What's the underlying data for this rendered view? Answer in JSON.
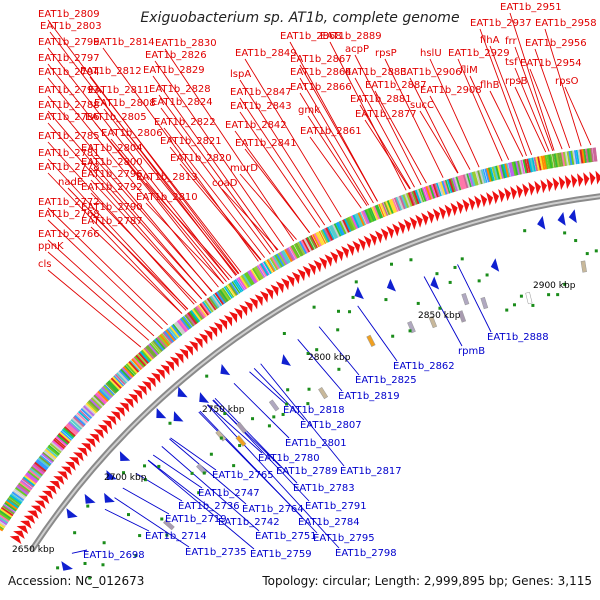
{
  "title": "Exiguobacterium sp. AT1b, complete genome",
  "footer": {
    "accession": "Accession: NC_012673",
    "summary": "Topology: circular; Length: 2,999,895 bp; Genes: 3,115"
  },
  "colors": {
    "forward_label": "#e00000",
    "reverse_label": "#0000cc",
    "forward_arrow": "#ee1111",
    "reverse_arrow": "#1020d0",
    "backbone": "#8a8a8a",
    "tick_marker": "#1a8c1a"
  },
  "bp_ticks": [
    {
      "label": "2650 kbp"
    },
    {
      "label": "2700 kbp"
    },
    {
      "label": "2750 kbp"
    },
    {
      "label": "2800 kbp"
    },
    {
      "label": "2850 kbp"
    },
    {
      "label": "2900 kbp"
    }
  ],
  "forward_labels": [
    "EAT1b_2809",
    "EAT1b_2803",
    "EAT1b_2799",
    "EAT1b_2814",
    "EAT1b_2830",
    "EAT1b_2797",
    "EAT1b_2826",
    "EAT1b_2794",
    "EAT1b_2812",
    "EAT1b_2829",
    "EAT1b_2793",
    "EAT1b_2811",
    "EAT1b_2828",
    "EAT1b_2788",
    "EAT1b_2808",
    "EAT1b_2824",
    "EAT1b_2786",
    "EAT1b_2805",
    "EAT1b_2822",
    "EAT1b_2785",
    "EAT1b_2806",
    "EAT1b_2821",
    "EAT1b_2781",
    "EAT1b_2804",
    "EAT1b_2820",
    "EAT1b_2778",
    "EAT1b_2800",
    "EAT1b_2796",
    "EAT1b_2813",
    "nadE",
    "EAT1b_2792",
    "EAT1b_2810",
    "EAT1b_2772",
    "EAT1b_2790",
    "EAT1b_2768",
    "EAT1b_2787",
    "EAT1b_2766",
    "ppnK",
    "cls",
    "coaD",
    "murD",
    "EAT1b_2841",
    "EAT1b_2842",
    "EAT1b_2843",
    "EAT1b_2847",
    "lspA",
    "EAT1b_2849",
    "EAT1b_2868",
    "EAT1b_2867",
    "EAT1b_2864",
    "EAT1b_2866",
    "gmk",
    "EAT1b_2861",
    "EAT1b_2889",
    "acpP",
    "rpsP",
    "EAT1b_2883",
    "EAT1b_2887",
    "EAT1b_2881",
    "EAT1b_2877",
    "hslU",
    "EAT1b_2906",
    "EAT1b_2908",
    "sucC",
    "flhA",
    "EAT1b_2929",
    "fliM",
    "flhB",
    "EAT1b_2937",
    "frr",
    "tsf",
    "rpsB",
    "EAT1b_2951",
    "EAT1b_2958",
    "EAT1b_2956",
    "EAT1b_2954",
    "rpsO"
  ],
  "reverse_labels": [
    "EAT1b_2888",
    "rpmB",
    "EAT1b_2862",
    "EAT1b_2825",
    "EAT1b_2819",
    "EAT1b_2818",
    "EAT1b_2807",
    "EAT1b_2801",
    "EAT1b_2817",
    "EAT1b_2780",
    "EAT1b_2789",
    "EAT1b_2765",
    "EAT1b_2783",
    "EAT1b_2747",
    "EAT1b_2791",
    "EAT1b_2736",
    "EAT1b_2764",
    "EAT1b_2784",
    "EAT1b_2719",
    "EAT1b_2742",
    "EAT1b_2795",
    "EAT1b_2714",
    "EAT1b_2751",
    "EAT1b_2798",
    "EAT1b_2735",
    "EAT1b_2759",
    "EAT1b_2698"
  ]
}
